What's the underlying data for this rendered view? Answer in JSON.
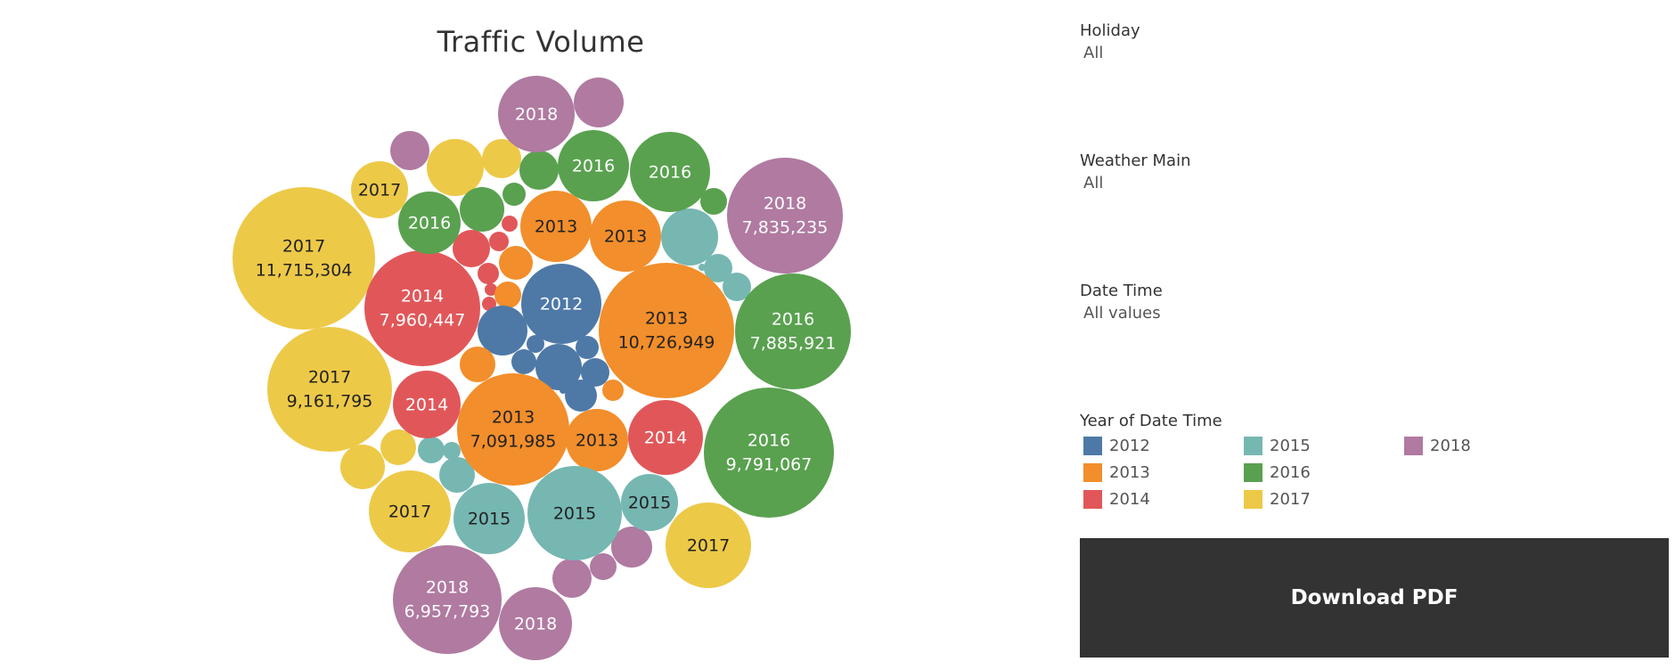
{
  "colors": {
    "2012": "#4e79a7",
    "2013": "#f28e2b",
    "2014": "#e15759",
    "2015": "#76b7b2",
    "2016": "#59a14f",
    "2017": "#edc948",
    "2018": "#b07aa1"
  },
  "filters": [
    {
      "label": "Holiday",
      "value": "All"
    },
    {
      "label": "Weather Main",
      "value": "All"
    },
    {
      "label": "Date Time",
      "value": "All values"
    }
  ],
  "legend": {
    "title": "Year of Date Time",
    "items": [
      "2012",
      "2013",
      "2014",
      "2015",
      "2016",
      "2017",
      "2018"
    ]
  },
  "download_label": "Download PDF",
  "chart_data": {
    "type": "packed-bubble",
    "title": "Traffic Volume",
    "measure": "Traffic Volume",
    "color_by": "Year of Date Time",
    "labeled_bubbles": [
      {
        "year": "2017",
        "value": "11,715,304"
      },
      {
        "year": "2013",
        "value": "10,726,949"
      },
      {
        "year": "2016",
        "value": "9,791,067"
      },
      {
        "year": "2017",
        "value": "9,161,795"
      },
      {
        "year": "2014",
        "value": "7,960,447"
      },
      {
        "year": "2016",
        "value": "7,885,921"
      },
      {
        "year": "2018",
        "value": "7,835,235"
      },
      {
        "year": "2013",
        "value": "7,091,985"
      },
      {
        "year": "2018",
        "value": "6,957,793"
      },
      {
        "year": "2018",
        "value": null
      },
      {
        "year": "2016",
        "value": null
      },
      {
        "year": "2016",
        "value": null
      },
      {
        "year": "2017",
        "value": null
      },
      {
        "year": "2016",
        "value": null
      },
      {
        "year": "2013",
        "value": null
      },
      {
        "year": "2013",
        "value": null
      },
      {
        "year": "2012",
        "value": null
      },
      {
        "year": "2014",
        "value": null
      },
      {
        "year": "2013",
        "value": null
      },
      {
        "year": "2014",
        "value": null
      },
      {
        "year": "2017",
        "value": null
      },
      {
        "year": "2015",
        "value": null
      },
      {
        "year": "2015",
        "value": null
      },
      {
        "year": "2015",
        "value": null
      },
      {
        "year": "2017",
        "value": null
      },
      {
        "year": "2018",
        "value": null
      }
    ]
  }
}
